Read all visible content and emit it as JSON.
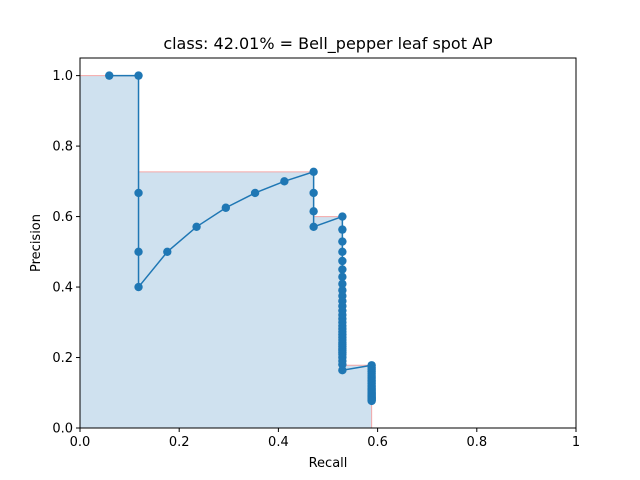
{
  "chart_data": {
    "type": "line",
    "title": "class: 42.01% = Bell_pepper leaf spot AP",
    "xlabel": "Recall",
    "ylabel": "Precision",
    "xlim": [
      0,
      1
    ],
    "ylim": [
      0,
      1.05
    ],
    "xticks": [
      "0.0",
      "0.2",
      "0.4",
      "0.6",
      "0.8",
      "1"
    ],
    "xtick_values": [
      0,
      0.2,
      0.4,
      0.6,
      0.8,
      1.0
    ],
    "yticks": [
      "0.0",
      "0.2",
      "0.4",
      "0.6",
      "0.8",
      "1.0"
    ],
    "ytick_values": [
      0,
      0.2,
      0.4,
      0.6,
      0.8,
      1.0
    ],
    "grid": false,
    "colors": {
      "line": "#1f77b4",
      "fill": "#cfe1ef",
      "envelope": "#f4a6a6"
    },
    "series": [
      {
        "x": [
          0.059,
          0.118,
          0.118,
          0.118,
          0.118,
          0.176,
          0.235,
          0.294,
          0.353,
          0.412,
          0.471,
          0.471,
          0.471,
          0.471,
          0.529,
          0.529,
          0.529,
          0.529,
          0.529,
          0.529,
          0.529,
          0.529,
          0.529,
          0.529,
          0.529,
          0.529,
          0.529,
          0.529,
          0.529,
          0.529,
          0.529,
          0.529,
          0.529,
          0.529,
          0.529,
          0.529,
          0.529,
          0.529,
          0.529,
          0.529,
          0.529,
          0.529,
          0.529,
          0.529,
          0.529,
          0.529,
          0.529,
          0.588,
          0.588,
          0.588,
          0.588,
          0.588,
          0.588,
          0.588,
          0.588,
          0.588,
          0.588,
          0.588,
          0.588,
          0.588,
          0.588,
          0.588,
          0.588,
          0.588,
          0.588,
          0.588,
          0.588,
          0.588,
          0.588,
          0.588,
          0.588,
          0.588,
          0.588
        ],
        "y": [
          1.0,
          1.0,
          0.667,
          0.5,
          0.4,
          0.5,
          0.571,
          0.625,
          0.667,
          0.7,
          0.727,
          0.667,
          0.615,
          0.571,
          0.6,
          0.563,
          0.529,
          0.5,
          0.474,
          0.45,
          0.429,
          0.409,
          0.391,
          0.375,
          0.36,
          0.346,
          0.333,
          0.321,
          0.31,
          0.3,
          0.29,
          0.281,
          0.273,
          0.265,
          0.257,
          0.25,
          0.243,
          0.237,
          0.231,
          0.225,
          0.22,
          0.214,
          0.209,
          0.2,
          0.19,
          0.18,
          0.164,
          0.178,
          0.172,
          0.166,
          0.16,
          0.154,
          0.148,
          0.142,
          0.136,
          0.131,
          0.126,
          0.121,
          0.117,
          0.113,
          0.109,
          0.105,
          0.101,
          0.098,
          0.095,
          0.092,
          0.089,
          0.087,
          0.085,
          0.083,
          0.081,
          0.079,
          0.077
        ]
      }
    ],
    "envelope": {
      "x": [
        0,
        0.118,
        0.118,
        0.471,
        0.471,
        0.529,
        0.529,
        0.588,
        0.588
      ],
      "y": [
        1.0,
        1.0,
        0.727,
        0.727,
        0.6,
        0.6,
        0.178,
        0.178,
        0
      ]
    }
  }
}
